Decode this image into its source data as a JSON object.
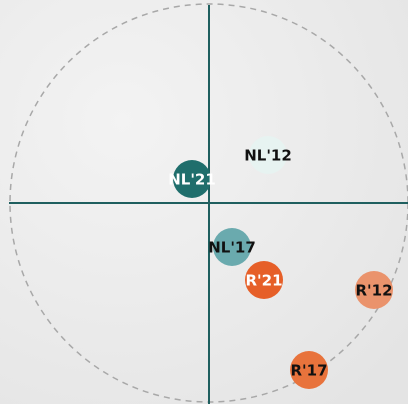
{
  "chart_data": {
    "type": "scatter",
    "labels": [
      "NL'21",
      "NL'12",
      "NL'17",
      "R'21",
      "R'12",
      "R'17"
    ],
    "x": [
      -0.085,
      0.295,
      0.115,
      0.275,
      0.825,
      0.5
    ],
    "values": [
      0.12,
      0.24,
      -0.22,
      -0.385,
      -0.435,
      -0.835
    ],
    "colors": [
      "#1f6e6c",
      "#e7f3f1",
      "#6aaaae",
      "#e65f28",
      "#ea936c",
      "#e8733c"
    ],
    "label_colors": [
      "#ffffff",
      "#111111",
      "#111111",
      "#ffffff",
      "#111111",
      "#111111"
    ],
    "xlim": [
      -1,
      1
    ],
    "ylim": [
      -1,
      1
    ]
  }
}
